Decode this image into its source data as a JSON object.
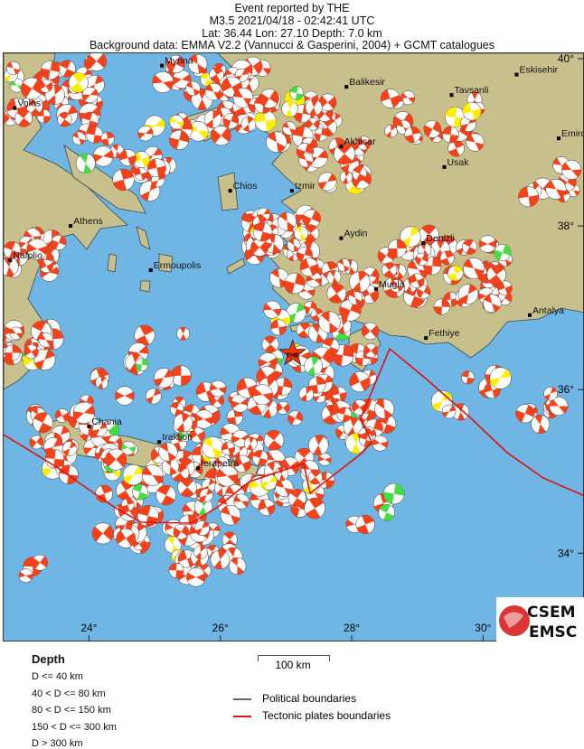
{
  "header": {
    "line1": "Event reported by THE",
    "line2": "M3.5  2021/04/18 - 02:42:41 UTC",
    "line3": "Lat: 36.44    Lon:  27.10     Depth:  7.0 km",
    "line4": "Background data: EMMA V2.2 (Vannucci & Gasperini, 2004) + GCMT catalogues"
  },
  "event": {
    "agency": "THE",
    "magnitude": 3.5,
    "lat": 36.44,
    "lon": 27.1,
    "depth_km": 7.0,
    "marker_color": "#ff3300"
  },
  "map": {
    "extent": {
      "lon_min": 22.7,
      "lon_max": 31.55,
      "lat_min": 32.91,
      "lat_max": 40.11
    },
    "lon_ticks": [
      {
        "value": 24,
        "label": "24°"
      },
      {
        "value": 26,
        "label": "26°"
      },
      {
        "value": 28,
        "label": "28°"
      },
      {
        "value": 30,
        "label": "30°"
      }
    ],
    "lat_ticks": [
      {
        "value": 34,
        "label": "34°"
      },
      {
        "value": 36,
        "label": "36°"
      },
      {
        "value": 38,
        "label": "38°"
      },
      {
        "value": 40,
        "label": "40°"
      }
    ],
    "colors": {
      "sea": "#6fb6e4",
      "land": "#c8c08c",
      "mechanism": "#f5421a",
      "shallow_alt": "#ffee00",
      "intermediate": "#44dd44",
      "deep": "#2233dd",
      "tectonic": "#e01010",
      "political": "#555555"
    },
    "cities": [
      {
        "name": "Myrina",
        "lat": 39.96,
        "lon": 25.11
      },
      {
        "name": "Balikesir",
        "lat": 39.7,
        "lon": 27.92
      },
      {
        "name": "Eskisehir",
        "lat": 39.85,
        "lon": 30.51
      },
      {
        "name": "Tavsanli",
        "lat": 39.6,
        "lon": 29.52
      },
      {
        "name": "Volos",
        "lat": 39.44,
        "lon": 22.87
      },
      {
        "name": "Akhisar",
        "lat": 38.97,
        "lon": 27.84
      },
      {
        "name": "Emirdag",
        "lat": 39.07,
        "lon": 31.15
      },
      {
        "name": "Usak",
        "lat": 38.72,
        "lon": 29.41
      },
      {
        "name": "Chios",
        "lat": 38.43,
        "lon": 26.15
      },
      {
        "name": "Izmir",
        "lat": 38.43,
        "lon": 27.09
      },
      {
        "name": "Athens",
        "lat": 38.0,
        "lon": 23.72
      },
      {
        "name": "Aydin",
        "lat": 37.85,
        "lon": 27.84
      },
      {
        "name": "Denizli",
        "lat": 37.79,
        "lon": 29.09
      },
      {
        "name": "Nafplio",
        "lat": 37.58,
        "lon": 22.8
      },
      {
        "name": "Ermoupolis",
        "lat": 37.46,
        "lon": 24.94
      },
      {
        "name": "Mugla",
        "lat": 37.23,
        "lon": 28.37
      },
      {
        "name": "Antalya",
        "lat": 36.91,
        "lon": 30.71
      },
      {
        "name": "Fethiye",
        "lat": 36.63,
        "lon": 29.13
      },
      {
        "name": "Chania",
        "lat": 35.55,
        "lon": 24.0
      },
      {
        "name": "Iraklion",
        "lat": 35.36,
        "lon": 25.07
      },
      {
        "name": "Ierapetra",
        "lat": 35.04,
        "lon": 25.66
      }
    ]
  },
  "legend": {
    "depth_title": "Depth",
    "depth_classes": [
      "D <= 40 km",
      "40 < D <= 80 km",
      "80 < D <= 150 km",
      "150 < D <= 300 km",
      "D > 300 km"
    ],
    "scale_label": "100 km",
    "political": "Political boundaries",
    "tectonic": "Tectonic plates boundaries"
  },
  "logo": {
    "top": "CSEM",
    "bottom": "EMSC"
  }
}
